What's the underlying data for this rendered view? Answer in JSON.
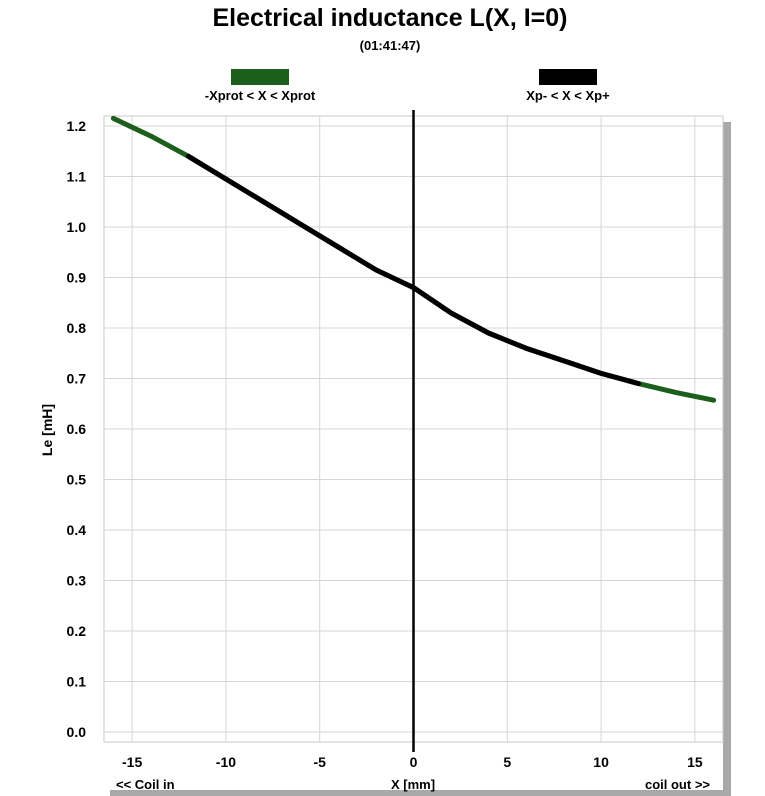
{
  "chart_data": {
    "type": "line",
    "title": "Electrical inductance L(X, I=0)",
    "subtitle": "(01:41:47)",
    "xlabel": "X [mm]",
    "ylabel": "Le [mH]",
    "x_left_note": "<< Coil in",
    "x_right_note": "coil out >>",
    "xlim": [
      -16.5,
      16.5
    ],
    "ylim": [
      0,
      1.2
    ],
    "xticks": [
      -15,
      -10,
      -5,
      0,
      5,
      10,
      15
    ],
    "yticks": [
      0.0,
      0.1,
      0.2,
      0.3,
      0.4,
      0.5,
      0.6,
      0.7,
      0.8,
      0.9,
      1.0,
      1.1,
      1.2
    ],
    "grid": true,
    "vertical_marker_x": 0,
    "legend": [
      {
        "name": "-Xprot < X < Xprot",
        "color": "#1c5e1c"
      },
      {
        "name": "Xp- < X < Xp+",
        "color": "#000000"
      }
    ],
    "series": [
      {
        "name": "-Xprot < X < Xprot",
        "color": "#1c5e1c",
        "x": [
          -16,
          -14,
          -12,
          -10,
          -8,
          -6,
          -4,
          -2,
          0,
          2,
          4,
          6,
          8,
          10,
          12,
          14,
          16
        ],
        "y": [
          1.215,
          1.18,
          1.14,
          1.095,
          1.05,
          1.005,
          0.96,
          0.915,
          0.88,
          0.83,
          0.79,
          0.76,
          0.735,
          0.71,
          0.69,
          0.672,
          0.657
        ]
      },
      {
        "name": "Xp- < X < Xp+",
        "color": "#000000",
        "x": [
          -12,
          -10,
          -8,
          -6,
          -4,
          -2,
          0,
          2,
          4,
          6,
          8,
          10,
          12
        ],
        "y": [
          1.14,
          1.095,
          1.05,
          1.005,
          0.96,
          0.915,
          0.88,
          0.83,
          0.79,
          0.76,
          0.735,
          0.71,
          0.69
        ]
      }
    ]
  }
}
